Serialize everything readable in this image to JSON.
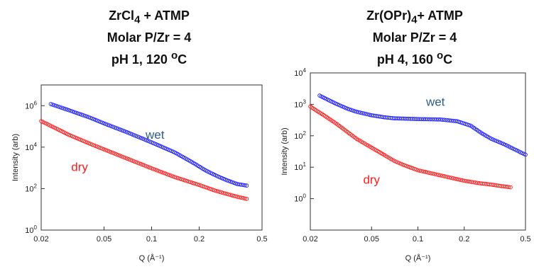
{
  "chart_data": [
    {
      "type": "scatter",
      "title_lines": [
        {
          "base": "ZrCl",
          "sub": "4",
          "rest": " + ATMP"
        },
        {
          "base": "Molar P/Zr = 4"
        },
        {
          "base": "pH 1, 120 ",
          "sup": "o",
          "rest": "C"
        }
      ],
      "xlabel": "Q (Å⁻¹)",
      "ylabel": "Intensity (arb)",
      "x_scale": "log",
      "y_scale": "log",
      "xlim": [
        0.02,
        0.5
      ],
      "ylim": [
        1,
        10000000
      ],
      "x_ticks": [
        {
          "value": 0.02,
          "label": "0.02"
        },
        {
          "value": 0.05,
          "label": "0.05"
        },
        {
          "value": 0.1,
          "label": "0.1"
        },
        {
          "value": 0.2,
          "label": "0.2"
        },
        {
          "value": 0.5,
          "label": "0.5"
        }
      ],
      "y_ticks": [
        {
          "value": 1,
          "base": "10",
          "exp": "0"
        },
        {
          "value": 100,
          "base": "10",
          "exp": "2"
        },
        {
          "value": 10000,
          "base": "10",
          "exp": "4"
        },
        {
          "value": 1000000,
          "base": "10",
          "exp": "6"
        }
      ],
      "series": [
        {
          "name": "wet",
          "color": "#1a1aff",
          "label_color": "#2e5c8a",
          "points": [
            [
              0.023,
              1200000
            ],
            [
              0.03,
              600000
            ],
            [
              0.04,
              280000
            ],
            [
              0.05,
              140000
            ],
            [
              0.07,
              52000
            ],
            [
              0.1,
              17000
            ],
            [
              0.14,
              5600
            ],
            [
              0.18,
              1900
            ],
            [
              0.22,
              750
            ],
            [
              0.26,
              400
            ],
            [
              0.3,
              250
            ],
            [
              0.35,
              165
            ],
            [
              0.4,
              140
            ]
          ]
        },
        {
          "name": "dry",
          "color": "#ff1a1a",
          "label_color": "#ff1a1a",
          "points": [
            [
              0.02,
              180000
            ],
            [
              0.025,
              78000
            ],
            [
              0.03,
              39000
            ],
            [
              0.04,
              15500
            ],
            [
              0.05,
              7800
            ],
            [
              0.07,
              2800
            ],
            [
              0.1,
              950
            ],
            [
              0.14,
              360
            ],
            [
              0.2,
              150
            ],
            [
              0.25,
              82
            ],
            [
              0.3,
              55
            ],
            [
              0.35,
              40
            ],
            [
              0.4,
              32
            ]
          ]
        }
      ],
      "annotations": [
        {
          "text": "wet",
          "x": 0.105,
          "y": 25000,
          "color": "#2e5c8a"
        },
        {
          "text": "dry",
          "x": 0.035,
          "y": 700,
          "color": "#ff1a1a"
        }
      ]
    },
    {
      "type": "scatter",
      "title_lines": [
        {
          "base": "Zr(OPr)",
          "sub": "4",
          "rest": "+ ATMP"
        },
        {
          "base": "Molar P/Zr = 4"
        },
        {
          "base": "pH 4, 160 ",
          "sup": "o",
          "rest": "C"
        }
      ],
      "xlabel": "Q (Å⁻¹)",
      "ylabel": "Intensity (arb)",
      "x_scale": "log",
      "y_scale": "log",
      "xlim": [
        0.02,
        0.5
      ],
      "ylim": [
        0.1,
        10000
      ],
      "x_ticks": [
        {
          "value": 0.02,
          "label": "0.02"
        },
        {
          "value": 0.05,
          "label": "0.05"
        },
        {
          "value": 0.1,
          "label": "0.1"
        },
        {
          "value": 0.2,
          "label": "0.2"
        },
        {
          "value": 0.5,
          "label": "0.5"
        }
      ],
      "y_ticks": [
        {
          "value": 1,
          "base": "10",
          "exp": "0"
        },
        {
          "value": 10,
          "base": "10",
          "exp": "1"
        },
        {
          "value": 100,
          "base": "10",
          "exp": "2"
        },
        {
          "value": 1000,
          "base": "10",
          "exp": "3"
        },
        {
          "value": 10000,
          "base": "10",
          "exp": "4"
        }
      ],
      "series": [
        {
          "name": "wet",
          "color": "#1a1aff",
          "label_color": "#2e5c8a",
          "points": [
            [
              0.023,
              1900
            ],
            [
              0.026,
              1400
            ],
            [
              0.03,
              1000
            ],
            [
              0.035,
              720
            ],
            [
              0.04,
              580
            ],
            [
              0.05,
              450
            ],
            [
              0.06,
              390
            ],
            [
              0.07,
              360
            ],
            [
              0.1,
              340
            ],
            [
              0.14,
              330
            ],
            [
              0.18,
              290
            ],
            [
              0.22,
              210
            ],
            [
              0.26,
              120
            ],
            [
              0.3,
              80
            ],
            [
              0.36,
              55
            ],
            [
              0.42,
              38
            ],
            [
              0.5,
              25
            ]
          ]
        },
        {
          "name": "dry",
          "color": "#ff1a1a",
          "label_color": "#ff1a1a",
          "points": [
            [
              0.02,
              850
            ],
            [
              0.025,
              420
            ],
            [
              0.03,
              230
            ],
            [
              0.035,
              130
            ],
            [
              0.04,
              80
            ],
            [
              0.05,
              42
            ],
            [
              0.06,
              25
            ],
            [
              0.07,
              16
            ],
            [
              0.08,
              12
            ],
            [
              0.1,
              8
            ],
            [
              0.14,
              5.5
            ],
            [
              0.2,
              3.7
            ],
            [
              0.25,
              3.1
            ],
            [
              0.3,
              2.8
            ],
            [
              0.35,
              2.5
            ],
            [
              0.4,
              2.3
            ]
          ]
        }
      ],
      "annotations": [
        {
          "text": "wet",
          "x": 0.13,
          "y": 900,
          "color": "#2e5c8a"
        },
        {
          "text": "dry",
          "x": 0.05,
          "y": 3,
          "color": "#ff1a1a"
        }
      ]
    }
  ]
}
